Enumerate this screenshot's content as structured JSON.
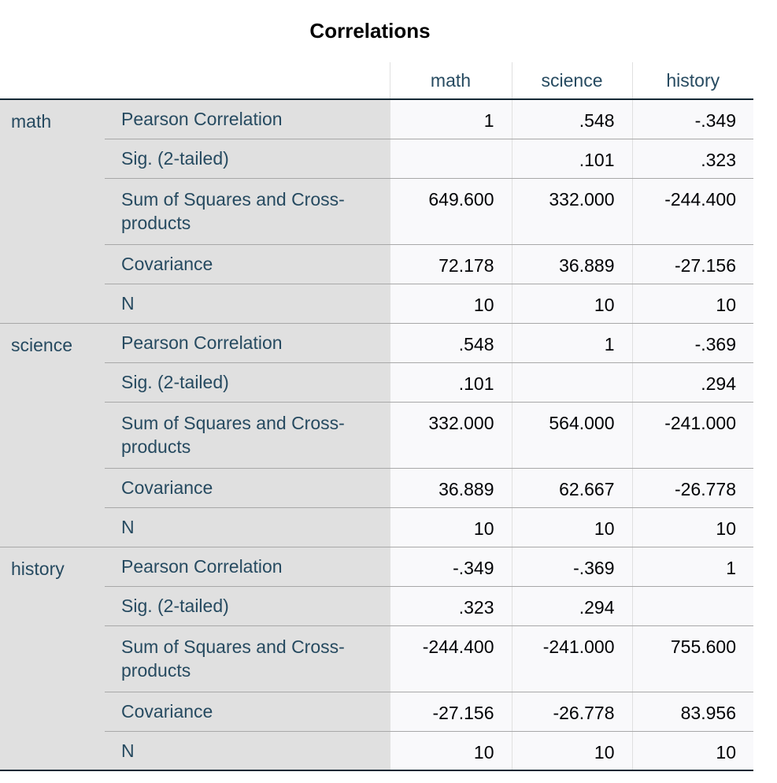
{
  "title": "Correlations",
  "columns": [
    "math",
    "science",
    "history"
  ],
  "groups": [
    {
      "name": "math",
      "rows": [
        {
          "stat": "Pearson Correlation",
          "values": [
            "1",
            ".548",
            "-.349"
          ]
        },
        {
          "stat": "Sig. (2-tailed)",
          "values": [
            "",
            ".101",
            ".323"
          ]
        },
        {
          "stat": "Sum of Squares and Cross-products",
          "values": [
            "649.600",
            "332.000",
            "-244.400"
          ]
        },
        {
          "stat": "Covariance",
          "values": [
            "72.178",
            "36.889",
            "-27.156"
          ]
        },
        {
          "stat": "N",
          "values": [
            "10",
            "10",
            "10"
          ]
        }
      ]
    },
    {
      "name": "science",
      "rows": [
        {
          "stat": "Pearson Correlation",
          "values": [
            ".548",
            "1",
            "-.369"
          ]
        },
        {
          "stat": "Sig. (2-tailed)",
          "values": [
            ".101",
            "",
            ".294"
          ]
        },
        {
          "stat": "Sum of Squares and Cross-products",
          "values": [
            "332.000",
            "564.000",
            "-241.000"
          ]
        },
        {
          "stat": "Covariance",
          "values": [
            "36.889",
            "62.667",
            "-26.778"
          ]
        },
        {
          "stat": "N",
          "values": [
            "10",
            "10",
            "10"
          ]
        }
      ]
    },
    {
      "name": "history",
      "rows": [
        {
          "stat": "Pearson Correlation",
          "values": [
            "-.349",
            "-.369",
            "1"
          ]
        },
        {
          "stat": "Sig. (2-tailed)",
          "values": [
            ".323",
            ".294",
            ""
          ]
        },
        {
          "stat": "Sum of Squares and Cross-products",
          "values": [
            "-244.400",
            "-241.000",
            "755.600"
          ]
        },
        {
          "stat": "Covariance",
          "values": [
            "-27.156",
            "-26.778",
            "83.956"
          ]
        },
        {
          "stat": "N",
          "values": [
            "10",
            "10",
            "10"
          ]
        }
      ]
    }
  ]
}
